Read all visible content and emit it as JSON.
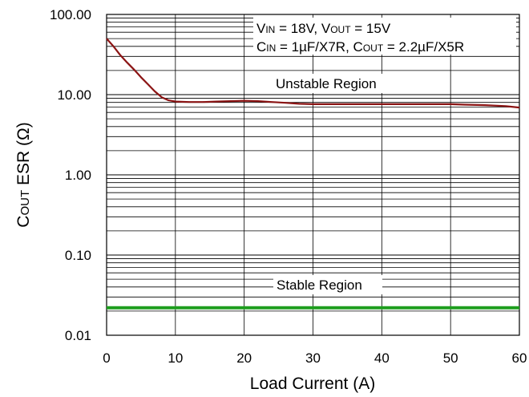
{
  "chart_data": {
    "type": "line",
    "xlabel": "Load Current (A)",
    "ylabel": {
      "main": "C",
      "sub": "OUT",
      "rest": " ESR (Ω)"
    },
    "x_scale": "linear",
    "y_scale": "log",
    "xlim": [
      0,
      60
    ],
    "ylim": [
      0.01,
      100
    ],
    "x_ticks": [
      "0",
      "10",
      "20",
      "30",
      "40",
      "50",
      "60"
    ],
    "y_ticks": [
      "0.01",
      "0.10",
      "1.00",
      "10.00",
      "100.00"
    ],
    "grid": true,
    "annotations": {
      "conditions_line1": [
        {
          "t": "V"
        },
        {
          "t": "IN",
          "sub": true
        },
        {
          "t": " = 18V, V"
        },
        {
          "t": "OUT",
          "sub": true
        },
        {
          "t": " =  15V"
        }
      ],
      "conditions_line2": [
        {
          "t": "C"
        },
        {
          "t": "IN",
          "sub": true
        },
        {
          "t": " = 1µF/X7R, C"
        },
        {
          "t": "OUT",
          "sub": true
        },
        {
          "t": " = 2.2µF/X5R"
        }
      ],
      "unstable_region": "Unstable Region",
      "stable_region": "Stable Region"
    },
    "series": [
      {
        "color": "#8b1414",
        "x": [
          0,
          1,
          2,
          3,
          4,
          5,
          6,
          7,
          8,
          9,
          10,
          12,
          14,
          16,
          18,
          20,
          22,
          24,
          26,
          28,
          30,
          35,
          40,
          45,
          50,
          52,
          55,
          58,
          60
        ],
        "y": [
          50,
          40,
          31,
          25,
          20.5,
          16.5,
          13.5,
          11,
          9.3,
          8.5,
          8.2,
          8.1,
          8.1,
          8.2,
          8.3,
          8.4,
          8.3,
          8.1,
          7.9,
          7.7,
          7.6,
          7.6,
          7.6,
          7.6,
          7.6,
          7.5,
          7.4,
          7.2,
          6.9
        ]
      },
      {
        "color": "#1e9e1e",
        "x": [
          0,
          60
        ],
        "y": [
          0.022,
          0.022
        ]
      }
    ]
  }
}
